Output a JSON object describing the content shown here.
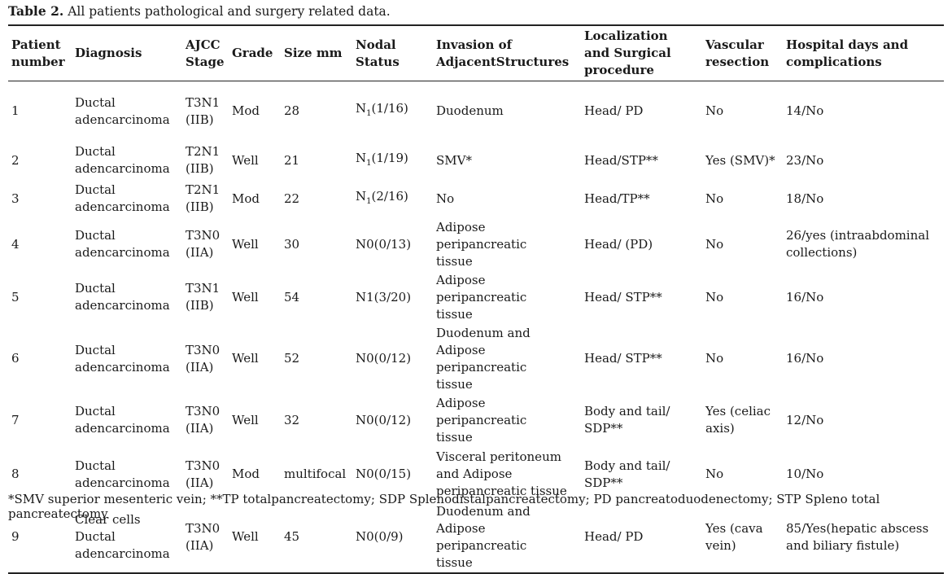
{
  "caption": {
    "label": "Table 2.",
    "text": " All patients pathological and surgery related data."
  },
  "columns": [
    [
      "Patient",
      "number"
    ],
    [
      "Diagnosis"
    ],
    [
      "AJCC",
      "Stage"
    ],
    [
      "Grade"
    ],
    [
      "Size mm"
    ],
    [
      "Nodal",
      "Status"
    ],
    [
      "Invasion of",
      "AdjacentStructures"
    ],
    [
      "Localization",
      "and Surgical",
      "procedure"
    ],
    [
      "Vascular",
      "resection"
    ],
    [
      "Hospital days and",
      "complications"
    ]
  ],
  "rows": [
    {
      "patient": "1",
      "diagnosis": [
        "Ductal",
        "adencarcinoma"
      ],
      "stage": [
        "T3N1",
        "(IIB)"
      ],
      "grade": "Mod",
      "size": "28",
      "nodal": {
        "pre": "N",
        "sub": "1",
        "post": "(1/16)"
      },
      "invasion": [
        "Duodenum"
      ],
      "procedure": [
        "Head/ PD"
      ],
      "vascular": [
        "No"
      ],
      "hospital": [
        "14/No"
      ]
    },
    {
      "patient": "2",
      "diagnosis": [
        "Ductal",
        "adencarcinoma"
      ],
      "stage": [
        "T2N1",
        "(IIB)"
      ],
      "grade": "Well",
      "size": "21",
      "nodal": {
        "pre": "N",
        "sub": "1",
        "post": "(1/19)"
      },
      "invasion": [
        "SMV*"
      ],
      "procedure": [
        "Head/STP**"
      ],
      "vascular": [
        "Yes (SMV)*"
      ],
      "hospital": [
        "23/No"
      ]
    },
    {
      "patient": "3",
      "diagnosis": [
        "Ductal",
        "adencarcinoma"
      ],
      "stage": [
        "T2N1",
        "(IIB)"
      ],
      "grade": "Mod",
      "size": "22",
      "nodal": {
        "pre": "N",
        "sub": "1",
        "post": "(2/16)"
      },
      "invasion": [
        "No"
      ],
      "procedure": [
        "Head/TP**"
      ],
      "vascular": [
        "No"
      ],
      "hospital": [
        "18/No"
      ]
    },
    {
      "patient": "4",
      "diagnosis": [
        "Ductal",
        "adencarcinoma"
      ],
      "stage": [
        "T3N0",
        "(IIA)"
      ],
      "grade": "Well",
      "size": "30",
      "nodal": {
        "pre": "N0(0/13)",
        "sub": "",
        "post": ""
      },
      "invasion": [
        "Adipose peripancreatic",
        "tissue"
      ],
      "procedure": [
        "Head/ (PD)"
      ],
      "vascular": [
        "No"
      ],
      "hospital": [
        "26/yes (intraabdominal",
        "collections)"
      ]
    },
    {
      "patient": "5",
      "diagnosis": [
        "Ductal",
        "adencarcinoma"
      ],
      "stage": [
        "T3N1",
        "(IIB)"
      ],
      "grade": "Well",
      "size": "54",
      "nodal": {
        "pre": "N1(3/20)",
        "sub": "",
        "post": ""
      },
      "invasion": [
        "Adipose peripancreatic",
        "tissue"
      ],
      "procedure": [
        "Head/ STP**"
      ],
      "vascular": [
        "No"
      ],
      "hospital": [
        "16/No"
      ]
    },
    {
      "patient": "6",
      "diagnosis": [
        "Ductal",
        "adencarcinoma"
      ],
      "stage": [
        "T3N0",
        "(IIA)"
      ],
      "grade": "Well",
      "size": "52",
      "nodal": {
        "pre": "N0(0/12)",
        "sub": "",
        "post": ""
      },
      "invasion": [
        "Duodenum and",
        "Adipose peripancreatic",
        "tissue"
      ],
      "procedure": [
        "Head/ STP**"
      ],
      "vascular": [
        "No"
      ],
      "hospital": [
        "16/No"
      ]
    },
    {
      "patient": "7",
      "diagnosis": [
        "Ductal",
        "adencarcinoma"
      ],
      "stage": [
        "T3N0",
        "(IIA)"
      ],
      "grade": "Well",
      "size": "32",
      "nodal": {
        "pre": "N0(0/12)",
        "sub": "",
        "post": ""
      },
      "invasion": [
        "Adipose peripancreatic",
        "tissue"
      ],
      "procedure": [
        "Body and tail/",
        "SDP**"
      ],
      "vascular": [
        "Yes (celiac",
        "axis)"
      ],
      "hospital": [
        "12/No"
      ]
    },
    {
      "patient": "8",
      "diagnosis": [
        "Ductal",
        "adencarcinoma"
      ],
      "stage": [
        "T3N0",
        "(IIA)"
      ],
      "grade": "Mod",
      "size": "multifocal",
      "nodal": {
        "pre": "N0(0/15)",
        "sub": "",
        "post": ""
      },
      "invasion": [
        "Visceral peritoneum",
        "and Adipose",
        "peripancreatic tissue"
      ],
      "procedure": [
        "Body and tail/",
        "SDP**"
      ],
      "vascular": [
        "No"
      ],
      "hospital": [
        "10/No"
      ]
    },
    {
      "patient": "9",
      "diagnosis": [
        "Clear cells Ductal",
        "adencarcinoma"
      ],
      "stage": [
        "T3N0",
        "(IIA)"
      ],
      "grade": "Well",
      "size": "45",
      "nodal": {
        "pre": "N0(0/9)",
        "sub": "",
        "post": ""
      },
      "invasion": [
        "Duodenum and",
        "Adipose peripancreatic",
        "tissue"
      ],
      "procedure": [
        "Head/ PD"
      ],
      "vascular": [
        "Yes (cava",
        "vein)"
      ],
      "hospital": [
        "85/Yes(hepatic abscess",
        "and biliary fistule)"
      ]
    }
  ],
  "footnote": "*SMV superior mesenteric vein; **TP totalpancreatectomy; SDP Splenodistalpancreatectomy; PD pancreatoduodenectomy; STP Spleno total pancreatectomy"
}
